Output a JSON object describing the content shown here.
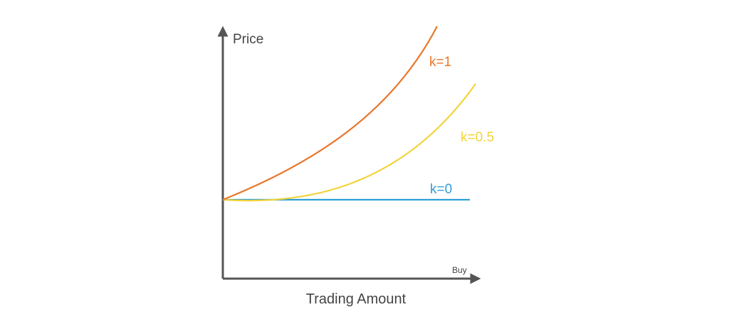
{
  "colors": {
    "axis": "#555555",
    "k1": "#e8762b",
    "k05": "#f2d33a",
    "k0": "#2e9fd8",
    "text": "#444444"
  },
  "axes": {
    "y_label": "Price",
    "x_label": "Trading Amount",
    "x_direction_label": "Buy"
  },
  "curves": [
    {
      "id": "k1",
      "label": "k=1",
      "shape": "steep convex increasing"
    },
    {
      "id": "k05",
      "label": "k=0.5",
      "shape": "gentle convex increasing"
    },
    {
      "id": "k0",
      "label": "k=0",
      "shape": "flat"
    }
  ]
}
